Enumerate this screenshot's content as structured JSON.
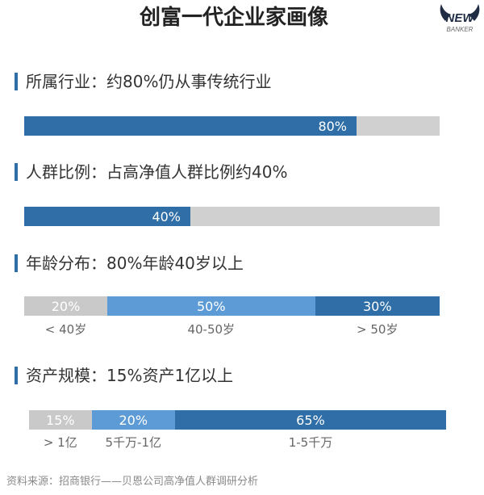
{
  "title": "创富一代企业家画像",
  "logo": {
    "line1": "NEW",
    "line2": "BANKER"
  },
  "colors": {
    "accent": "#2f6ea6",
    "logo": "#1f2c44"
  },
  "chart_data": [
    {
      "type": "bar",
      "title": "所属行业：约80%仍从事传统行业",
      "values": [
        80
      ],
      "value_labels": [
        "80%"
      ],
      "colors": [
        "#2f6ea6"
      ],
      "track_color": "#d0d0d0",
      "xlim": [
        0,
        100
      ],
      "grid": false
    },
    {
      "type": "bar",
      "title": "人群比例：占高净值人群比例约40%",
      "values": [
        40
      ],
      "value_labels": [
        "40%"
      ],
      "colors": [
        "#2f6ea6"
      ],
      "track_color": "#d0d0d0",
      "xlim": [
        0,
        100
      ],
      "grid": false
    },
    {
      "type": "bar",
      "title": "年龄分布：80%年龄40岁以上",
      "categories": [
        "< 40岁",
        "40-50岁",
        "> 50岁"
      ],
      "values": [
        20,
        50,
        30
      ],
      "value_labels": [
        "20%",
        "50%",
        "30%"
      ],
      "colors": [
        "#c9c9c9",
        "#5c9bd6",
        "#2f6ea6"
      ],
      "xlim": [
        0,
        100
      ],
      "grid": false
    },
    {
      "type": "bar",
      "title": "资产规模：15%资产1亿以上",
      "categories": [
        "> 1亿",
        "5千万-1亿",
        "1-5千万"
      ],
      "values": [
        15,
        20,
        65
      ],
      "value_labels": [
        "15%",
        "20%",
        "65%"
      ],
      "colors": [
        "#c9c9c9",
        "#5c9bd6",
        "#2f6ea6"
      ],
      "xlim": [
        0,
        100
      ],
      "grid": false
    }
  ],
  "source": "资料来源：招商银行——贝恩公司高净值人群调研分析"
}
